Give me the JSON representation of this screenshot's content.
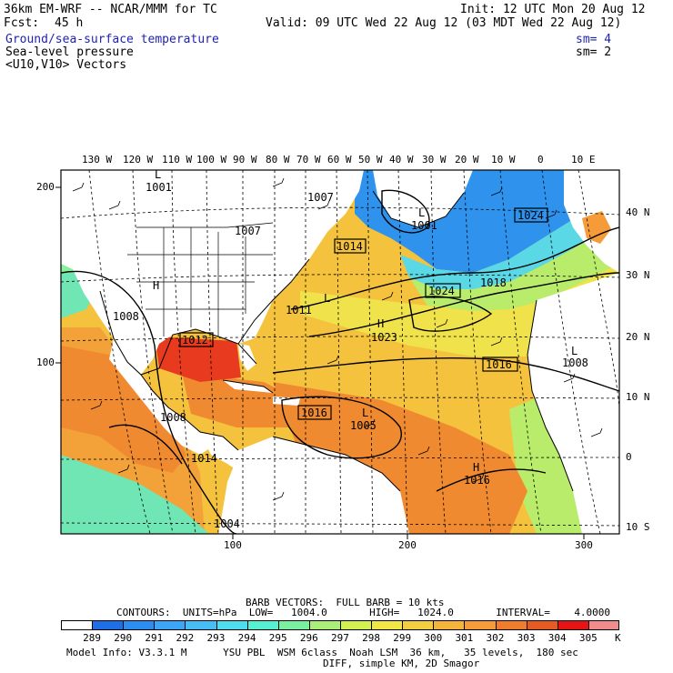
{
  "header": {
    "model_title": "36km EM-WRF -- NCAR/MMM for TC",
    "forecast_label": "Fcst:",
    "forecast_hours": "45 h",
    "init": "Init: 12 UTC Mon 20 Aug 12",
    "valid": "Valid: 09 UTC Wed 22 Aug 12 (03 MDT Wed 22 Aug 12)",
    "fields": [
      {
        "label": "Ground/sea-surface temperature",
        "smoothing": "sm= 4",
        "color": "#1f1fb4"
      },
      {
        "label": "Sea-level pressure",
        "smoothing": "sm= 2",
        "color": "#000000"
      },
      {
        "label": "<U10,V10> Vectors",
        "smoothing": "",
        "color": "#000000"
      }
    ]
  },
  "map": {
    "top_longitude_labels": [
      "130 W",
      "120 W",
      "110 W",
      "100 W",
      "90 W",
      "80 W",
      "70 W",
      "60 W",
      "50 W",
      "40 W",
      "30 W",
      "20 W",
      "10 W",
      "0",
      "10 E"
    ],
    "right_latitude_labels": [
      "40 N",
      "30 N",
      "20 N",
      "10 N",
      "0",
      "10 S"
    ],
    "left_grid_labels": [
      "200",
      "100"
    ],
    "bottom_grid_labels": [
      "100",
      "200",
      "300"
    ],
    "pressure_labels": [
      "1001",
      "1007",
      "1007",
      "1001",
      "1024",
      "1018",
      "1024",
      "1016",
      "1016",
      "1008",
      "1008",
      "1011",
      "1023",
      "1005",
      "1016",
      "1008",
      "1014",
      "1004",
      "1012",
      "1014"
    ],
    "high_low_marks": [
      "L",
      "L",
      "H",
      "H",
      "L",
      "L",
      "H",
      "L"
    ]
  },
  "footer": {
    "barb_line": "BARB VECTORS:  FULL BARB = 10 kts",
    "contours": "CONTOURS:  UNITS=hPa  LOW=   1004.0       HIGH=   1024.0       INTERVAL=    4.0000",
    "colorbar_unit": "K",
    "colorbar_values": [
      "289",
      "290",
      "291",
      "292",
      "293",
      "294",
      "295",
      "296",
      "297",
      "298",
      "299",
      "300",
      "301",
      "302",
      "303",
      "304",
      "305"
    ],
    "colorbar_colors": [
      "#ffffff",
      "#1e6ee6",
      "#2d8cf0",
      "#3ca5f5",
      "#46bef5",
      "#50dcf0",
      "#55f0d2",
      "#78f0a0",
      "#aaf078",
      "#d2f050",
      "#f0e646",
      "#f5cd41",
      "#f5b43c",
      "#f59b37",
      "#f07d2d",
      "#e65a23",
      "#e61414",
      "#f08c8c"
    ],
    "model_info": "Model Info: V3.3.1 M      YSU PBL  WSM 6class  Noah LSM  36 km,   35 levels,  180 sec",
    "model_info2": "DIFF, simple KM, 2D Smagor"
  }
}
